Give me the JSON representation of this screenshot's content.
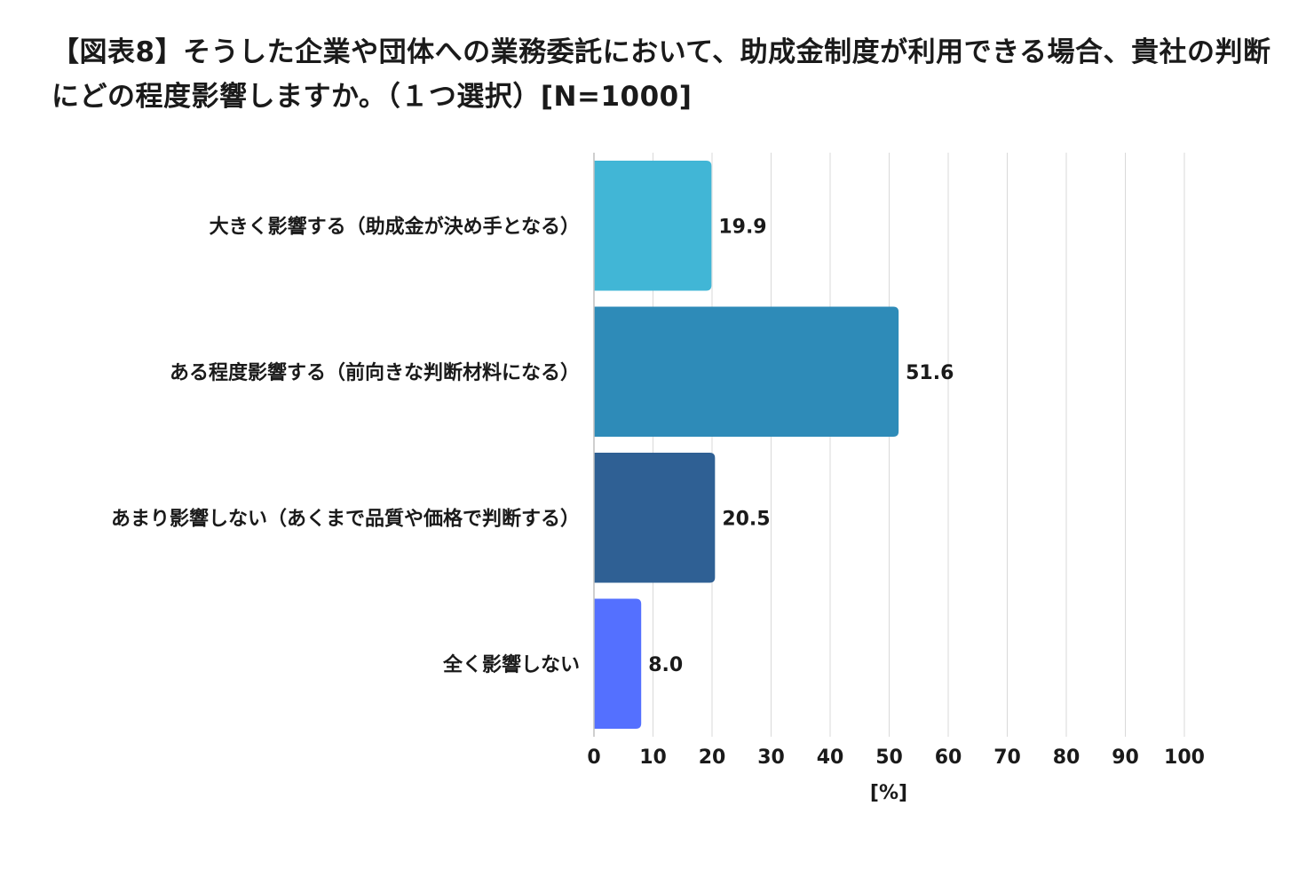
{
  "chart_data": {
    "type": "bar",
    "orientation": "horizontal",
    "title": "【図表8】そうした企業や団体への業務委託において、助成金制度が利用できる場合、貴社の判断にどの程度影響しますか。（１つ選択）[N=1000]",
    "xlabel": "[%]",
    "ylabel": "",
    "xlim": [
      0,
      100
    ],
    "x_ticks": [
      "0",
      "10",
      "20",
      "30",
      "40",
      "50",
      "60",
      "70",
      "80",
      "90",
      "100"
    ],
    "grid": true,
    "categories": [
      "大きく影響する（助成金が決め手となる）",
      "ある程度影響する（前向きな判断材料になる）",
      "あまり影響しない（あくまで品質や価格で判断する）",
      "全く影響しない"
    ],
    "values": [
      19.9,
      51.6,
      20.5,
      8.0
    ],
    "value_labels": [
      "19.9",
      "51.6",
      "20.5",
      "8.0"
    ],
    "colors": [
      "#41b6d6",
      "#2e8bb8",
      "#2f6094",
      "#5470ff"
    ]
  }
}
